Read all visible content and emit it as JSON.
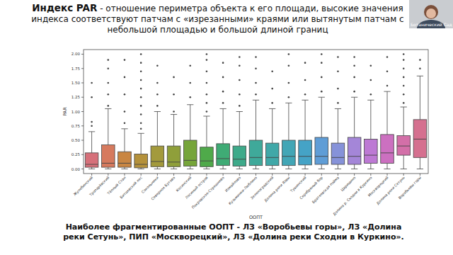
{
  "chart_data": {
    "type": "box",
    "title": "Индекс PAR",
    "subtitle": " - отношение периметра объекта к его площади, высокие значения индекса соответствуют патчам с «изрезанными» краями или вытянутым патчам с небольшой площадью и большой длиной границ",
    "x_label": "ООПТ",
    "y_label": "PAR",
    "annotations": [
      "Наиболее фрагментированные ООПТ - ЛЗ «Воробьевы горы», ЛЗ «Долина реки Сетунь», ПИП «Москворецкий», ЛЗ «Долина реки Сходни в Куркино».",
      "Ботанический Сад"
    ],
    "categories": [
      "Жулебинский",
      "Тропарёвский",
      "Тёплый Стан",
      "Битцевский лес",
      "Сокольники",
      "Северное Бутово",
      "Косинский",
      "Лосиный остров",
      "Покровское-Стрешнево",
      "Измайлово",
      "Кузьминки-Люблино",
      "Зеленоградский",
      "Долина реки Язвы",
      "Тушинский",
      "Серебряный бор",
      "Братеевская пойма",
      "Царицыно",
      "Долина р. Сходни в Куркино",
      "Москворецкий",
      "Долина реки Сетунь",
      "Воробьевы горы"
    ],
    "whisker_low": [
      0,
      0,
      0,
      0,
      0,
      0,
      0,
      0,
      0,
      0,
      0,
      0,
      0,
      0,
      0,
      0,
      0,
      0,
      0,
      0,
      0
    ],
    "q1": [
      0.03,
      0.03,
      0.03,
      0.02,
      0.04,
      0.04,
      0.05,
      0.04,
      0.06,
      0.05,
      0.06,
      0.06,
      0.06,
      0.07,
      0.08,
      0.08,
      0.08,
      0.1,
      0.1,
      0.24,
      0.2
    ],
    "median": [
      0.08,
      0.1,
      0.1,
      0.08,
      0.13,
      0.12,
      0.15,
      0.14,
      0.18,
      0.17,
      0.2,
      0.2,
      0.22,
      0.22,
      0.22,
      0.2,
      0.22,
      0.24,
      0.28,
      0.4,
      0.52
    ],
    "q3": [
      0.28,
      0.42,
      0.3,
      0.26,
      0.4,
      0.4,
      0.5,
      0.38,
      0.44,
      0.4,
      0.5,
      0.45,
      0.5,
      0.5,
      0.55,
      0.45,
      0.55,
      0.52,
      0.6,
      0.58,
      0.86
    ],
    "whisker_high": [
      0.65,
      1.05,
      0.7,
      0.62,
      1.0,
      0.95,
      1.12,
      0.92,
      1.05,
      1.0,
      1.2,
      1.05,
      1.15,
      1.2,
      1.25,
      1.05,
      1.25,
      1.2,
      1.35,
      1.08,
      1.62
    ],
    "outliers": [
      [
        0.75,
        0.82,
        1.25,
        1.5
      ],
      [
        1.1,
        1.3,
        1.5,
        1.75,
        1.9
      ],
      [
        0.8,
        1.0,
        1.3,
        1.6,
        1.9
      ],
      [
        0.7,
        0.8,
        0.95,
        1.1,
        1.25,
        1.4,
        1.55,
        1.7,
        1.85,
        2.0
      ],
      [
        1.1,
        1.3,
        1.5,
        1.8
      ],
      [
        1.0,
        1.3,
        1.6
      ],
      [
        1.25,
        1.5,
        1.8
      ],
      [
        1.0,
        1.15,
        1.3,
        1.5,
        1.7,
        1.9,
        2.0
      ],
      [
        1.15,
        1.35,
        1.6,
        1.85
      ],
      [
        1.1,
        1.3,
        1.55,
        1.8,
        1.95
      ],
      [
        1.3,
        1.5,
        1.75,
        1.95
      ],
      [
        1.15,
        1.4,
        1.7
      ],
      [
        1.25,
        1.5,
        1.8,
        2.0
      ],
      [
        1.3,
        1.55,
        1.85
      ],
      [
        1.35,
        1.6,
        1.85,
        2.0
      ],
      [
        1.15,
        1.4,
        1.7,
        1.95
      ],
      [
        1.35,
        1.6,
        1.8,
        1.95
      ],
      [
        1.3,
        1.55,
        1.8
      ],
      [
        1.45,
        1.7,
        1.95
      ],
      [
        1.15,
        1.3,
        1.45,
        1.6,
        1.75,
        1.9,
        2.0
      ],
      [
        1.75,
        1.9
      ]
    ],
    "colors": [
      "#d6707a",
      "#d67a5e",
      "#c98642",
      "#b4913b",
      "#a39a3c",
      "#8f9f3a",
      "#76a53a",
      "#4faa4a",
      "#3fab75",
      "#3eaa8a",
      "#3fa99a",
      "#40a8a8",
      "#42a6b6",
      "#45a3c6",
      "#5f9dd6",
      "#8692d9",
      "#a486d8",
      "#bd79d4",
      "#cc70c0",
      "#d36fa8",
      "#d5708f"
    ],
    "ylim": [
      -0.08,
      2.08
    ],
    "yticks": [
      {
        "value": 0,
        "label": "0.00"
      },
      {
        "value": 0.25,
        "label": "0.25"
      },
      {
        "value": 0.5,
        "label": "0.50"
      },
      {
        "value": 0.75,
        "label": "0.75"
      },
      {
        "value": 1,
        "label": "1.00"
      },
      {
        "value": 1.25,
        "label": "1.25"
      },
      {
        "value": 1.5,
        "label": "1.50"
      },
      {
        "value": 1.75,
        "label": "1.75"
      },
      {
        "value": 2,
        "label": "2.00"
      }
    ],
    "grid": false
  }
}
